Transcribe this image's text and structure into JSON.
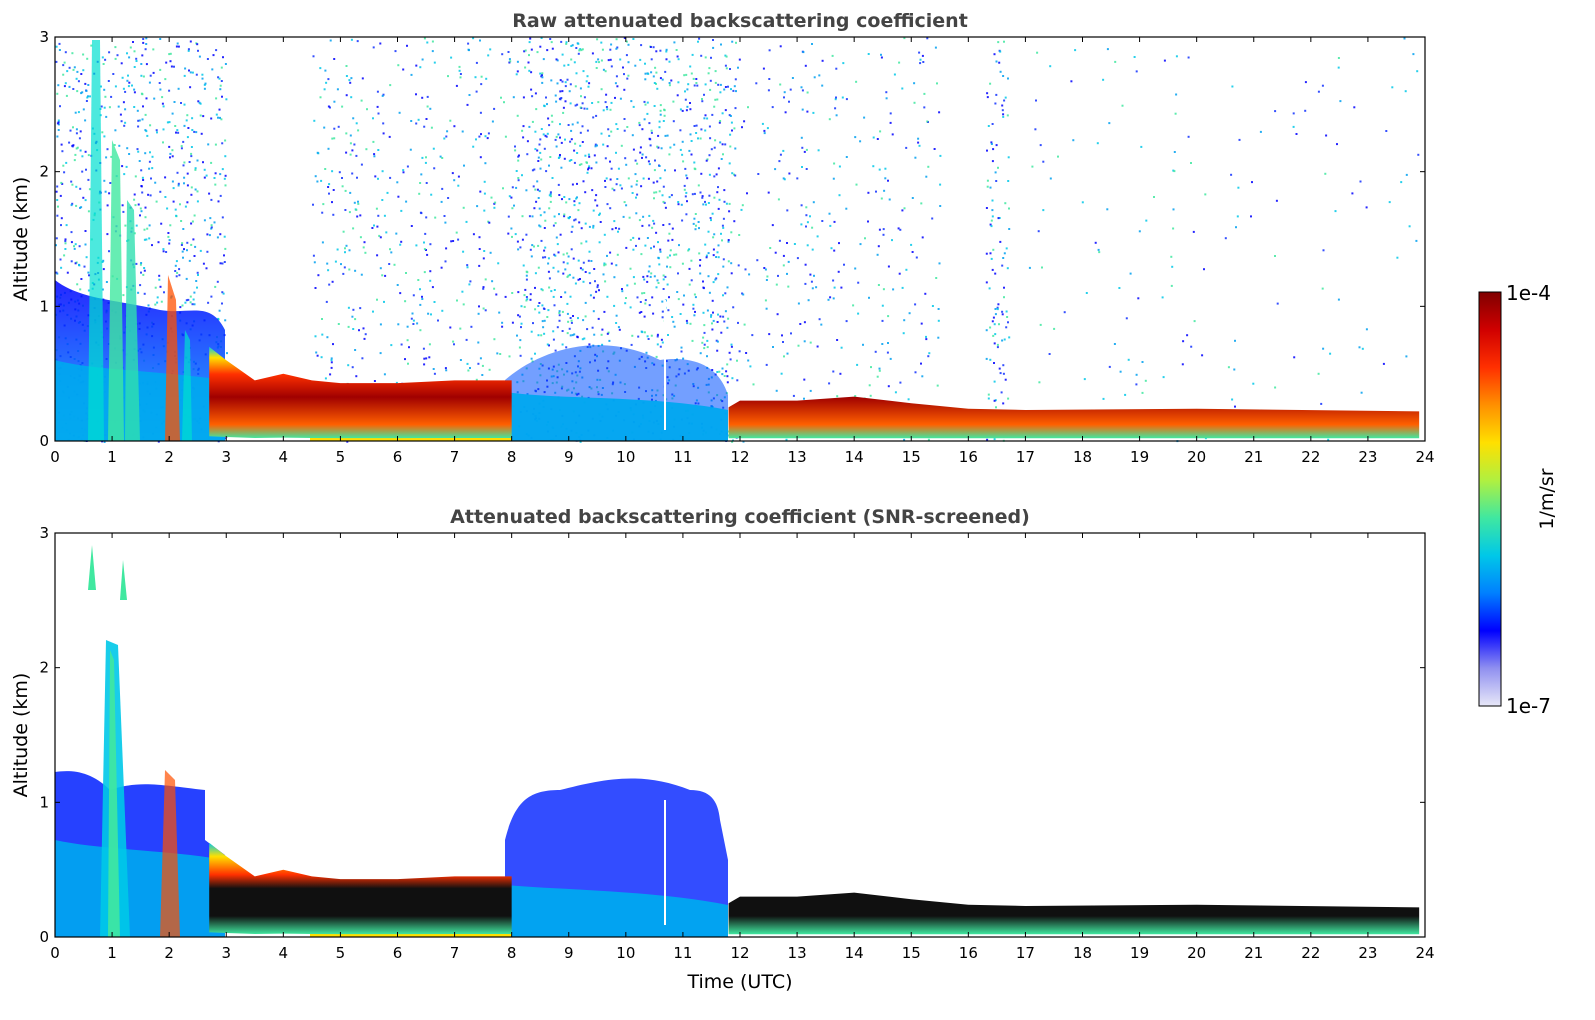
{
  "chart_data": [
    {
      "type": "heatmap",
      "title": "Raw attenuated backscattering coefficient",
      "xlabel": "",
      "ylabel": "Altitude (km)",
      "xlim": [
        0,
        24
      ],
      "ylim": [
        0,
        3
      ],
      "x_ticks": [
        "0",
        "1",
        "2",
        "3",
        "4",
        "5",
        "6",
        "7",
        "8",
        "9",
        "10",
        "11",
        "12",
        "13",
        "14",
        "15",
        "16",
        "17",
        "18",
        "19",
        "20",
        "21",
        "22",
        "23",
        "24"
      ],
      "y_ticks": [
        "0",
        "1",
        "2",
        "3"
      ],
      "color_scale": "log",
      "value_range": [
        "1e-7",
        "1e-4"
      ],
      "screened": false,
      "features": [
        {
          "type": "aerosol_layer_top_km",
          "time_h": [
            2.7,
            3.0,
            3.5,
            4.0,
            4.5,
            5.0,
            6.0,
            7.0,
            7.8,
            8.0,
            11.8,
            12.0,
            13.0,
            14.0,
            15.0,
            16.0,
            17.0,
            20.0,
            23.9
          ],
          "value_km": [
            0.7,
            0.6,
            0.45,
            0.5,
            0.45,
            0.43,
            0.43,
            0.45,
            0.45,
            0.45,
            0.25,
            0.3,
            0.3,
            0.33,
            0.28,
            0.24,
            0.23,
            0.24,
            0.22
          ]
        },
        {
          "type": "cloud_streaks",
          "time_h": [
            0.6,
            1.0,
            1.3,
            2.0,
            2.3
          ]
        },
        {
          "type": "noise_region",
          "time_h": [
            8.0,
            11.8
          ],
          "top_km": 3.0
        }
      ]
    },
    {
      "type": "heatmap",
      "title": "Attenuated backscattering coefficient (SNR-screened)",
      "xlabel": "Time (UTC)",
      "ylabel": "Altitude (km)",
      "xlim": [
        0,
        24
      ],
      "ylim": [
        0,
        3
      ],
      "x_ticks": [
        "0",
        "1",
        "2",
        "3",
        "4",
        "5",
        "6",
        "7",
        "8",
        "9",
        "10",
        "11",
        "12",
        "13",
        "14",
        "15",
        "16",
        "17",
        "18",
        "19",
        "20",
        "21",
        "22",
        "23",
        "24"
      ],
      "y_ticks": [
        "0",
        "1",
        "2",
        "3"
      ],
      "color_scale": "log",
      "value_range": [
        "1e-7",
        "1e-4"
      ],
      "screened": true
    }
  ],
  "colorbar": {
    "label": "1/m/sr",
    "max_label": "1e-4",
    "min_label": "1e-7",
    "colors": [
      "#e8e8f8",
      "#9090f0",
      "#0000ff",
      "#0080ff",
      "#00c8e8",
      "#40e8a0",
      "#b0f040",
      "#ffe000",
      "#ff9000",
      "#ff3000",
      "#d00000",
      "#800000"
    ]
  }
}
